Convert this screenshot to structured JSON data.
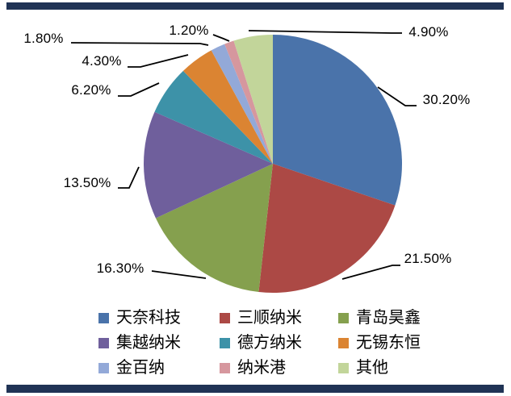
{
  "page": {
    "background": "#ffffff",
    "top_bar_color": "#203355",
    "bottom_bar_color": "#203355"
  },
  "chart_data": {
    "type": "pie",
    "title": "",
    "legend_position": "bottom",
    "start_angle_deg": 0,
    "direction": "clockwise",
    "points": [
      {
        "label": "天奈科技",
        "value": 30.2,
        "display": "30.20%",
        "color": "#4a73aa"
      },
      {
        "label": "三顺纳米",
        "value": 21.5,
        "display": "21.50%",
        "color": "#ac4945"
      },
      {
        "label": "青岛昊鑫",
        "value": 16.3,
        "display": "16.30%",
        "color": "#85a04e"
      },
      {
        "label": "集越纳米",
        "value": 13.5,
        "display": "13.50%",
        "color": "#6f5f9c"
      },
      {
        "label": "德方纳米",
        "value": 6.2,
        "display": "6.20%",
        "color": "#3d92a8"
      },
      {
        "label": "无锡东恒",
        "value": 4.3,
        "display": "4.30%",
        "color": "#db8432"
      },
      {
        "label": "金百纳",
        "value": 1.8,
        "display": "1.80%",
        "color": "#93a9d8"
      },
      {
        "label": "纳米港",
        "value": 1.2,
        "display": "1.20%",
        "color": "#d6979e"
      },
      {
        "label": "其他",
        "value": 4.9,
        "display": "4.90%",
        "color": "#c2d59a"
      }
    ]
  }
}
